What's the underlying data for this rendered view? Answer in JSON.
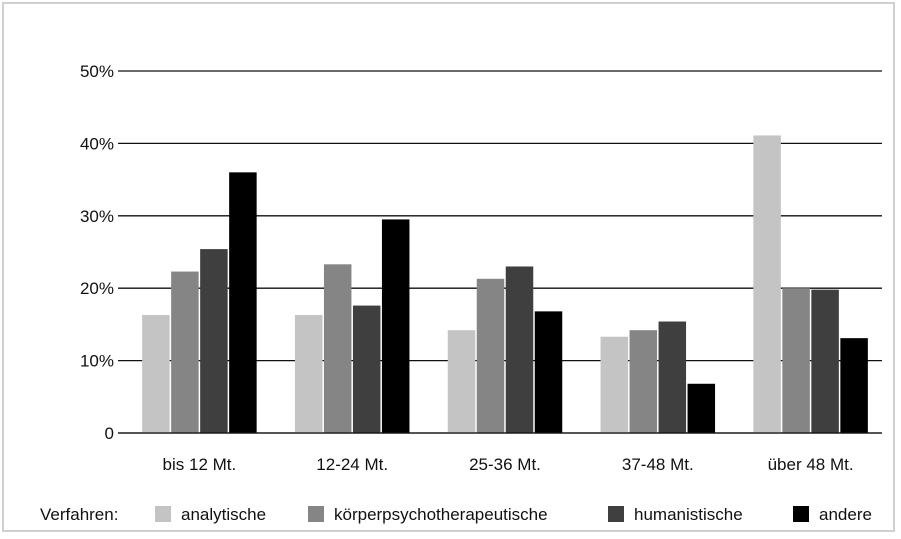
{
  "chart_data": {
    "type": "bar",
    "categories": [
      "bis 12 Mt.",
      "12-24 Mt.",
      "25-36 Mt.",
      "37-48 Mt.",
      "über 48 Mt."
    ],
    "series": [
      {
        "name": "analytische",
        "color": "#c4c4c4",
        "values": [
          16.3,
          16.3,
          14.2,
          13.3,
          41.1
        ]
      },
      {
        "name": "körperpsychotherapeutische",
        "color": "#858585",
        "values": [
          22.3,
          23.3,
          21.3,
          14.2,
          20.0
        ]
      },
      {
        "name": "humanistische",
        "color": "#3f3f3f",
        "values": [
          25.4,
          17.6,
          23.0,
          15.4,
          19.8
        ]
      },
      {
        "name": "andere",
        "color": "#000000",
        "values": [
          36.0,
          29.5,
          16.8,
          6.8,
          13.1
        ]
      }
    ],
    "ylim": [
      0,
      50
    ],
    "yticks": [
      0,
      10,
      20,
      30,
      40,
      50
    ],
    "ytick_labels": [
      "0",
      "10%",
      "20%",
      "30%",
      "40%",
      "50%"
    ],
    "legend_title": "Verfahren:",
    "legend_position": "bottom",
    "grid": true
  }
}
